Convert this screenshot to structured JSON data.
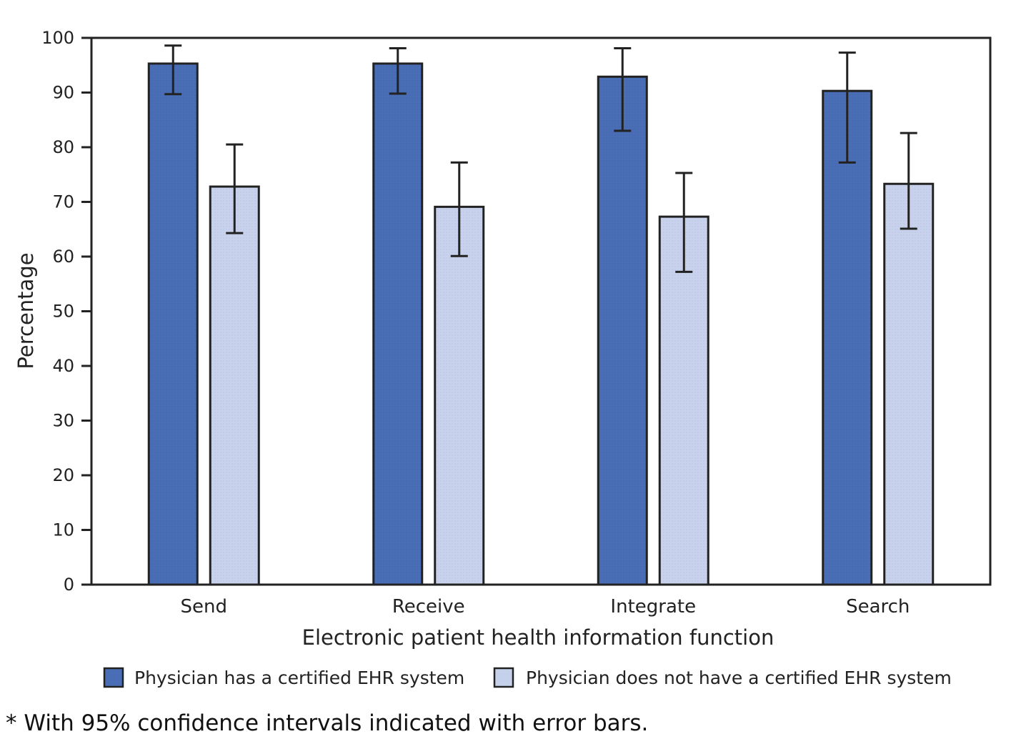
{
  "chart_data": {
    "type": "bar",
    "title": "",
    "xlabel": "Electronic patient health information function",
    "ylabel": "Percentage",
    "categories": [
      "Send",
      "Receive",
      "Integrate",
      "Search"
    ],
    "series": [
      {
        "name": "Physician has a certified EHR system",
        "color": "#4a6eb5",
        "values": [
          95.3,
          95.3,
          92.9,
          90.3
        ],
        "ci_lower": [
          89.7,
          89.8,
          83.0,
          77.2
        ],
        "ci_upper": [
          98.6,
          98.1,
          98.1,
          97.3
        ]
      },
      {
        "name": "Physician does not have a certified EHR system",
        "color": "#c5d0ea",
        "values": [
          72.8,
          69.1,
          67.3,
          73.3
        ],
        "ci_lower": [
          64.3,
          60.1,
          57.2,
          65.1
        ],
        "ci_upper": [
          80.5,
          77.2,
          75.3,
          82.6
        ]
      }
    ],
    "ylim": [
      0,
      100
    ],
    "yticks": [
      0,
      10,
      20,
      30,
      40,
      50,
      60,
      70,
      80,
      90,
      100
    ],
    "grid": false,
    "legend_position": "bottom"
  },
  "footnote": "* With 95% confidence intervals indicated with error bars."
}
